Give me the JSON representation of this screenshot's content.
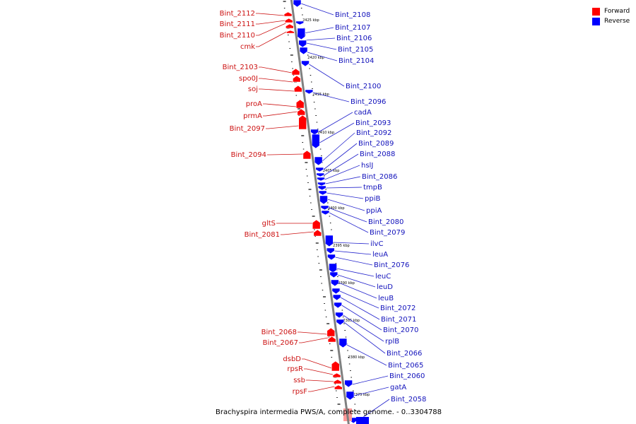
{
  "caption": "Brachyspira intermedia PWS/A, complete genome. - 0..3304788",
  "legend": {
    "forward": {
      "label": "Forward",
      "color": "#ff0000"
    },
    "reverse": {
      "label": "Reverse",
      "color": "#0000ff"
    }
  },
  "backbone_color": "#808080",
  "tick_labels": [
    "2425 kbp",
    "2420 kbp",
    "2415 kbp",
    "2410 kbp",
    "2405 kbp",
    "2400 kbp",
    "2395 kbp",
    "2390 kbp",
    "2385 kbp",
    "2380 kbp",
    "2375 kbp"
  ],
  "forward_genes": [
    "Bint_2112",
    "Bint_2111",
    "Bint_2110",
    "cmk",
    "Bint_2103",
    "spo0J",
    "soj",
    "proA",
    "prmA",
    "Bint_2097",
    "Bint_2094",
    "gltS",
    "Bint_2081",
    "Bint_2068",
    "Bint_2067",
    "dsbD",
    "rpsR",
    "ssb",
    "rpsF"
  ],
  "reverse_genes": [
    "Bint_2108",
    "Bint_2107",
    "Bint_2106",
    "Bint_2105",
    "Bint_2104",
    "Bint_2100",
    "Bint_2096",
    "cadA",
    "Bint_2093",
    "Bint_2092",
    "Bint_2089",
    "Bint_2088",
    "hslJ",
    "Bint_2086",
    "tmpB",
    "ppiB",
    "ppiA",
    "Bint_2080",
    "Bint_2079",
    "ilvC",
    "leuA",
    "Bint_2076",
    "leuC",
    "leuD",
    "leuB",
    "Bint_2072",
    "Bint_2071",
    "Bint_2070",
    "rplB",
    "Bint_2066",
    "Bint_2065",
    "Bint_2060",
    "gatA",
    "Bint_2058"
  ]
}
